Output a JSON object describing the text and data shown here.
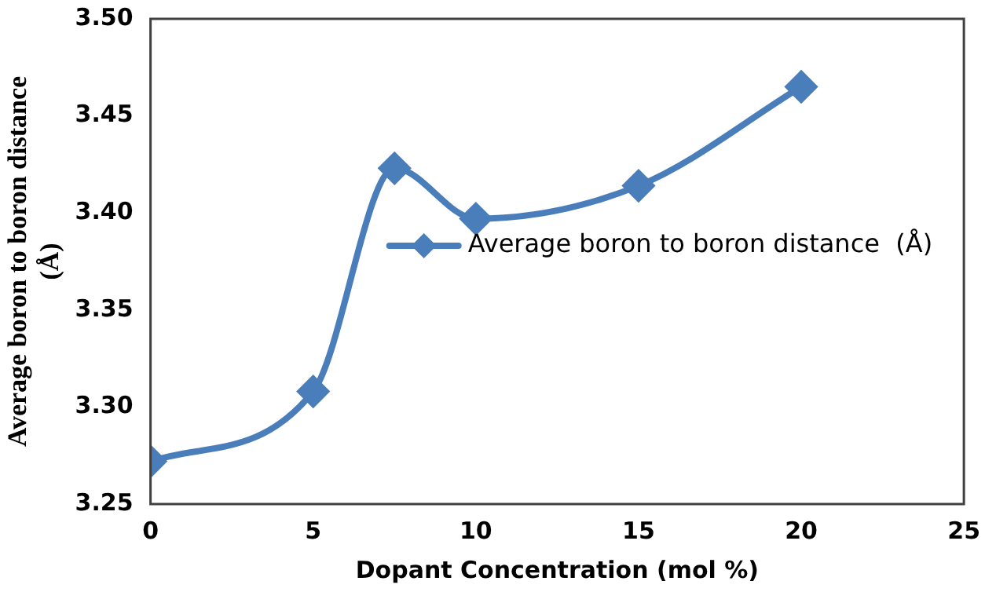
{
  "chart_data": {
    "type": "line",
    "xlabel": "Dopant Concentration (mol %)",
    "ylabel": "Average boron to boron distance (Å)",
    "x": [
      0,
      5,
      7.5,
      10,
      15,
      20
    ],
    "series": [
      {
        "name": "Average boron to boron distance  (Å)",
        "color": "#4a7ebb",
        "values": [
          3.272,
          3.308,
          3.423,
          3.397,
          3.414,
          3.465
        ]
      }
    ],
    "xlim": [
      0,
      25
    ],
    "xticks": [
      0,
      5,
      10,
      15,
      20,
      25
    ],
    "ylim": [
      3.25,
      3.5
    ],
    "yticks": [
      3.25,
      {
        "value": 3.3,
        "label": "3.30"
      },
      3.35,
      {
        "value": 3.4,
        "label": "3.40"
      },
      3.45,
      {
        "value": 3.5,
        "label": "3.50"
      }
    ],
    "grid": false,
    "legend": "right",
    "marker": "diamond",
    "line_style": "solid"
  }
}
